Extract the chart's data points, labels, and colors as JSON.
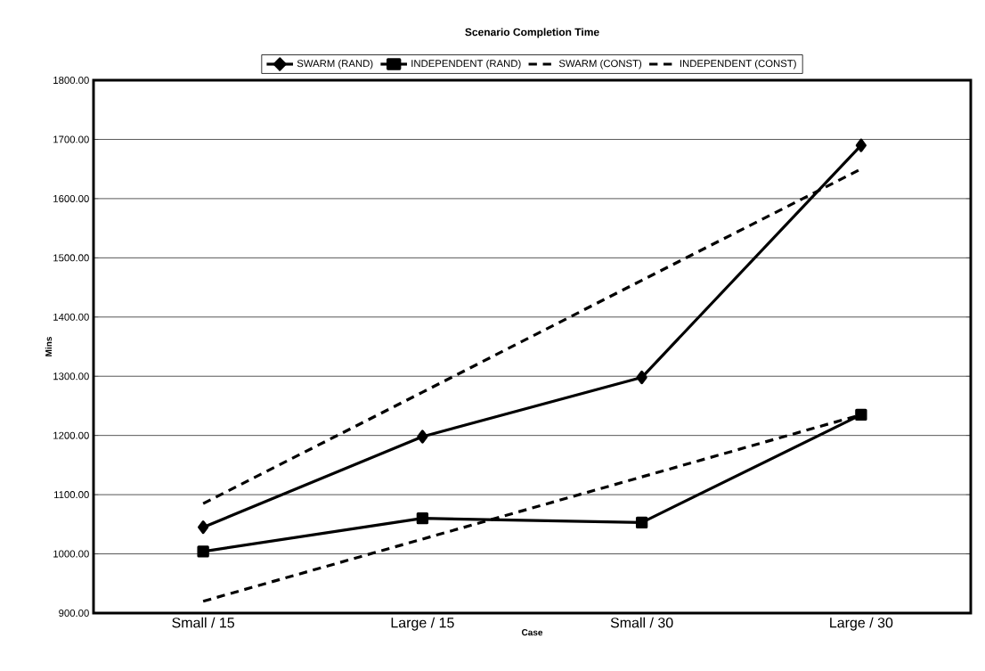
{
  "chart_data": {
    "type": "line",
    "title": "Scenario Completion Time",
    "xlabel": "Case",
    "ylabel": "Mins",
    "categories": [
      "Small / 15",
      "Large / 15",
      "Small / 30",
      "Large / 30"
    ],
    "series": [
      {
        "name": "SWARM (RAND)",
        "color": "#000000",
        "values": [
          1045,
          1198,
          1298,
          1690
        ],
        "marker": "diamond",
        "line_style": "solid"
      },
      {
        "name": "INDEPENDENT (RAND)",
        "color": "#000000",
        "values": [
          1004,
          1060,
          1053,
          1235
        ],
        "marker": "square",
        "line_style": "solid"
      },
      {
        "name": "SWARM (CONST)",
        "color": "#000000",
        "values": [
          1085,
          1273,
          1462,
          1650
        ],
        "marker": "none",
        "line_style": "dashed"
      },
      {
        "name": "INDEPENDENT (CONST)",
        "color": "#000000",
        "values": [
          920,
          1025,
          1130,
          1235
        ],
        "marker": "none",
        "line_style": "dashed"
      }
    ],
    "ylim": [
      900,
      1800
    ],
    "yticks": [
      {
        "value": 900,
        "label": "900.00"
      },
      {
        "value": 1000,
        "label": "1000.00"
      },
      {
        "value": 1100,
        "label": "1100.00"
      },
      {
        "value": 1200,
        "label": "1200.00"
      },
      {
        "value": 1300,
        "label": "1300.00"
      },
      {
        "value": 1400,
        "label": "1400.00"
      },
      {
        "value": 1500,
        "label": "1500.00"
      },
      {
        "value": 1600,
        "label": "1600.00"
      },
      {
        "value": 1700,
        "label": "1700.00"
      },
      {
        "value": 1800,
        "label": "1800.00"
      }
    ],
    "grid": "y",
    "legend": "top"
  }
}
